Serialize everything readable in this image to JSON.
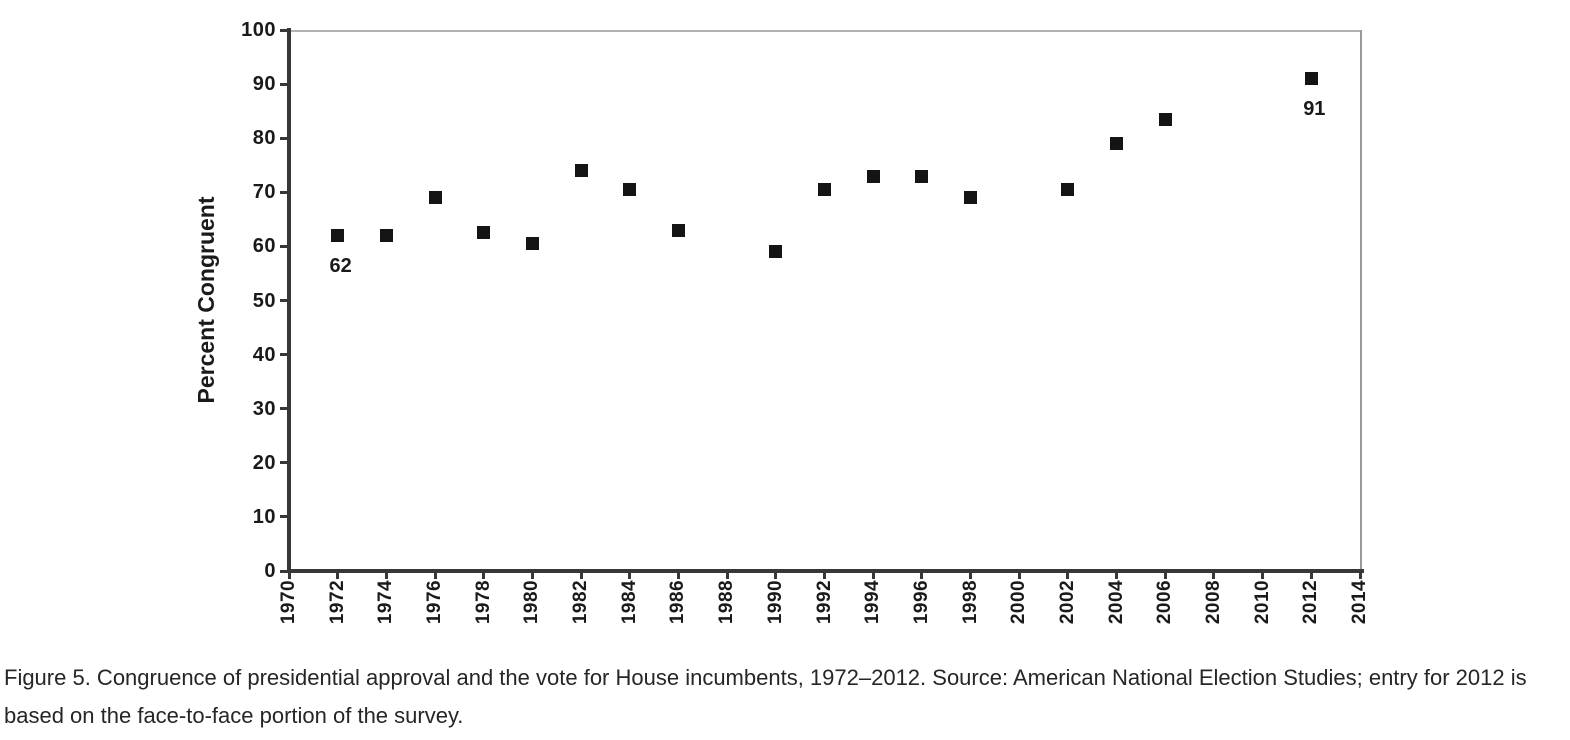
{
  "caption": {
    "text": "Figure 5. Congruence of presidential approval and the vote for House incumbents, 1972–2012. Source: American National Election Studies; entry for 2012 is based on the face-to-face portion of the survey."
  },
  "chart_data": {
    "type": "scatter",
    "title": "",
    "xlabel": "",
    "ylabel": "Percent Congruent",
    "xlim": [
      1970,
      2014
    ],
    "ylim": [
      0,
      100
    ],
    "x_ticks": [
      1970,
      1972,
      1974,
      1976,
      1978,
      1980,
      1982,
      1984,
      1986,
      1988,
      1990,
      1992,
      1994,
      1996,
      1998,
      2000,
      2002,
      2004,
      2006,
      2008,
      2010,
      2012,
      2014
    ],
    "y_ticks": [
      0,
      10,
      20,
      30,
      40,
      50,
      60,
      70,
      80,
      90,
      100
    ],
    "grid": false,
    "legend": "none",
    "marker": "filled-square",
    "points": [
      {
        "x": 1972,
        "y": 62,
        "label": "62"
      },
      {
        "x": 1974,
        "y": 62,
        "label": ""
      },
      {
        "x": 1976,
        "y": 69,
        "label": ""
      },
      {
        "x": 1978,
        "y": 62.5,
        "label": ""
      },
      {
        "x": 1980,
        "y": 60.5,
        "label": ""
      },
      {
        "x": 1982,
        "y": 74,
        "label": ""
      },
      {
        "x": 1984,
        "y": 70.5,
        "label": ""
      },
      {
        "x": 1986,
        "y": 63,
        "label": ""
      },
      {
        "x": 1990,
        "y": 59,
        "label": ""
      },
      {
        "x": 1992,
        "y": 70.5,
        "label": ""
      },
      {
        "x": 1994,
        "y": 73,
        "label": ""
      },
      {
        "x": 1996,
        "y": 73,
        "label": ""
      },
      {
        "x": 1998,
        "y": 69,
        "label": ""
      },
      {
        "x": 2002,
        "y": 70.5,
        "label": ""
      },
      {
        "x": 2004,
        "y": 79,
        "label": ""
      },
      {
        "x": 2006,
        "y": 83.5,
        "label": ""
      },
      {
        "x": 2012,
        "y": 91,
        "label": "91"
      }
    ],
    "colors": {
      "marker": "#141414",
      "axis": "#373737",
      "frame": "#a8a8a8",
      "text": "#1a1a1a",
      "background": "#ffffff"
    }
  }
}
